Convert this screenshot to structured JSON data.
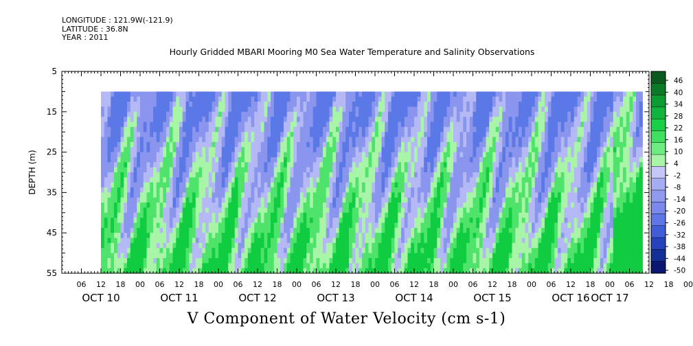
{
  "meta": {
    "longitude": "LONGITUDE : 121.9W(-121.9)",
    "latitude": "LATITUDE : 36.8N",
    "year": "YEAR : 2011"
  },
  "title": "Hourly Gridded MBARI Mooring M0 Sea Water Temperature and Salinity Observations",
  "colorbar_title": "V Component of Water Velocity (cm s-1)",
  "chart_data": {
    "type": "heatmap",
    "title": "Hourly Gridded MBARI Mooring M0 Sea Water Temperature and Salinity Observations",
    "xlabel": "",
    "ylabel": "DEPTH (m)",
    "variable_label": "V Component of Water Velocity (cm s-1)",
    "x_hour_range": [
      0,
      180
    ],
    "data_hour_range": [
      12,
      178
    ],
    "y_range": [
      5,
      55
    ],
    "y_reversed": true,
    "data_depth_range": [
      10,
      55
    ],
    "y_ticks": [
      5,
      15,
      25,
      35,
      45,
      55
    ],
    "x_day_labels": [
      {
        "label": "OCT 10",
        "hour": 12
      },
      {
        "label": "OCT 11",
        "hour": 36
      },
      {
        "label": "OCT 12",
        "hour": 60
      },
      {
        "label": "OCT 13",
        "hour": 84
      },
      {
        "label": "OCT 14",
        "hour": 108
      },
      {
        "label": "OCT 15",
        "hour": 132
      },
      {
        "label": "OCT 16",
        "hour": 156
      },
      {
        "label": "OCT 17",
        "hour": 168
      }
    ],
    "x_hour_ticks": [
      "06",
      "12",
      "18",
      "00",
      "06",
      "12",
      "18",
      "00",
      "06",
      "12",
      "18",
      "00",
      "06",
      "12",
      "18",
      "00",
      "06",
      "12",
      "18",
      "00",
      "06",
      "12",
      "18",
      "00",
      "06",
      "12",
      "18",
      "00",
      "06",
      "12",
      "18",
      "00"
    ],
    "colorbar_labels": [
      "46",
      "40",
      "34",
      "28",
      "22",
      "16",
      "10",
      "4",
      "-2",
      "-8",
      "-14",
      "-20",
      "-26",
      "-32",
      "-38",
      "-44",
      "-50"
    ],
    "colorbar_range": [
      -50,
      52
    ],
    "colors": {
      "positive_light": "#a8f5a8",
      "positive_mid": "#4fe36b",
      "positive_strong": "#10cc40",
      "positive_dark": "#0a6e28",
      "negative_light": "#b4b8f5",
      "negative_mid": "#8a95ee",
      "negative_strong": "#5a78e6",
      "negative_dark": "#102080"
    }
  }
}
